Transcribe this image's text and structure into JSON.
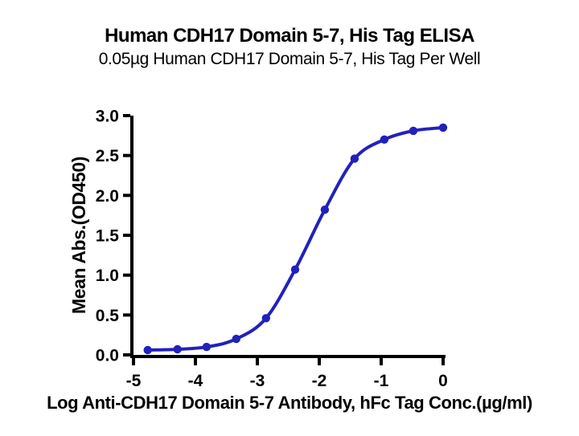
{
  "header": {
    "title": "Human CDH17 Domain 5-7, His Tag ELISA",
    "subtitle": "0.05µg Human CDH17 Domain 5-7, His Tag Per Well"
  },
  "chart_data": {
    "type": "line",
    "title": "Human CDH17 Domain 5-7, His Tag ELISA",
    "subtitle": "0.05µg Human CDH17 Domain 5-7, His Tag Per Well",
    "xlabel": "Log Anti-CDH17 Domain 5-7 Antibody, hFc Tag Conc.(µg/ml)",
    "ylabel": "Mean Abs.(OD450)",
    "x": [
      -4.77,
      -4.29,
      -3.82,
      -3.34,
      -2.86,
      -2.39,
      -1.91,
      -1.43,
      -0.95,
      -0.48,
      0
    ],
    "y": [
      0.06,
      0.07,
      0.1,
      0.2,
      0.46,
      1.07,
      1.82,
      2.46,
      2.7,
      2.81,
      2.85
    ],
    "xticks": [
      -5,
      -4,
      -3,
      -2,
      -1,
      0
    ],
    "yticks": [
      0.0,
      0.5,
      1.0,
      1.5,
      2.0,
      2.5,
      3.0
    ],
    "xlim": [
      -5,
      0
    ],
    "ylim": [
      0,
      3
    ],
    "grid": false,
    "legend": "none",
    "line_color": "#2121bd",
    "marker_color": "#2121bd",
    "axis_color": "#000000",
    "marker": "circle"
  }
}
